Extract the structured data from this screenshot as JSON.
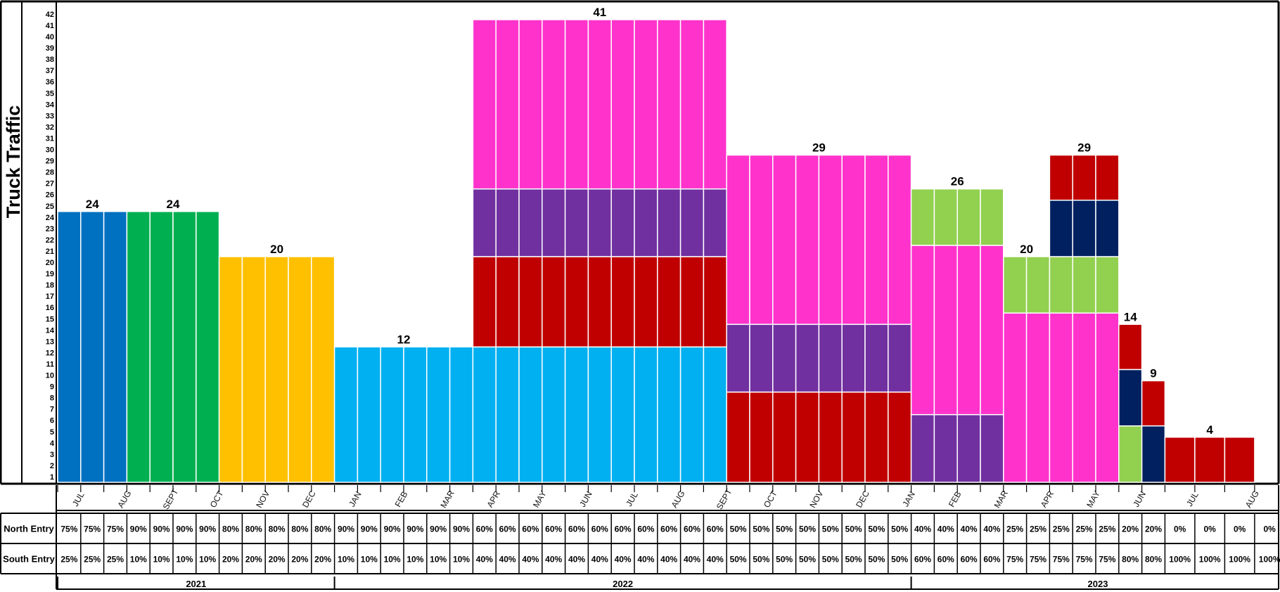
{
  "chart_data": {
    "type": "bar",
    "stacked": true,
    "ylabel": "Truck  Traffic",
    "ylim": [
      0,
      42
    ],
    "yticks": [
      1,
      2,
      3,
      4,
      5,
      6,
      7,
      8,
      9,
      10,
      11,
      12,
      13,
      14,
      15,
      16,
      17,
      18,
      19,
      20,
      21,
      22,
      23,
      24,
      25,
      26,
      27,
      28,
      29,
      30,
      31,
      32,
      33,
      34,
      35,
      36,
      37,
      38,
      39,
      40,
      41,
      42
    ],
    "colors": {
      "dark_blue": "#0070c0",
      "green": "#00b050",
      "orange": "#ffc000",
      "light_blue": "#00b0f0",
      "pink": "#ff33cc",
      "purple": "#7030a0",
      "red": "#c00000",
      "lime": "#92d050",
      "navy": "#002060"
    },
    "bars": [
      {
        "segments": [
          {
            "value": 24,
            "color": "dark_blue"
          }
        ]
      },
      {
        "segments": [
          {
            "value": 24,
            "color": "dark_blue"
          }
        ]
      },
      {
        "segments": [
          {
            "value": 24,
            "color": "dark_blue"
          }
        ]
      },
      {
        "segments": [
          {
            "value": 24,
            "color": "green"
          }
        ]
      },
      {
        "segments": [
          {
            "value": 24,
            "color": "green"
          }
        ]
      },
      {
        "segments": [
          {
            "value": 24,
            "color": "green"
          }
        ]
      },
      {
        "segments": [
          {
            "value": 24,
            "color": "green"
          }
        ]
      },
      {
        "segments": [
          {
            "value": 20,
            "color": "orange"
          }
        ]
      },
      {
        "segments": [
          {
            "value": 20,
            "color": "orange"
          }
        ]
      },
      {
        "segments": [
          {
            "value": 20,
            "color": "orange"
          }
        ]
      },
      {
        "segments": [
          {
            "value": 20,
            "color": "orange"
          }
        ]
      },
      {
        "segments": [
          {
            "value": 20,
            "color": "orange"
          }
        ]
      },
      {
        "segments": [
          {
            "value": 12,
            "color": "light_blue"
          }
        ]
      },
      {
        "segments": [
          {
            "value": 12,
            "color": "light_blue"
          }
        ]
      },
      {
        "segments": [
          {
            "value": 12,
            "color": "light_blue"
          }
        ]
      },
      {
        "segments": [
          {
            "value": 12,
            "color": "light_blue"
          }
        ]
      },
      {
        "segments": [
          {
            "value": 12,
            "color": "light_blue"
          }
        ]
      },
      {
        "segments": [
          {
            "value": 12,
            "color": "light_blue"
          }
        ]
      },
      {
        "segments": [
          {
            "value": 12,
            "color": "light_blue"
          },
          {
            "value": 8,
            "color": "red"
          },
          {
            "value": 6,
            "color": "purple"
          },
          {
            "value": 15,
            "color": "pink"
          }
        ]
      },
      {
        "segments": [
          {
            "value": 12,
            "color": "light_blue"
          },
          {
            "value": 8,
            "color": "red"
          },
          {
            "value": 6,
            "color": "purple"
          },
          {
            "value": 15,
            "color": "pink"
          }
        ]
      },
      {
        "segments": [
          {
            "value": 12,
            "color": "light_blue"
          },
          {
            "value": 8,
            "color": "red"
          },
          {
            "value": 6,
            "color": "purple"
          },
          {
            "value": 15,
            "color": "pink"
          }
        ]
      },
      {
        "segments": [
          {
            "value": 12,
            "color": "light_blue"
          },
          {
            "value": 8,
            "color": "red"
          },
          {
            "value": 6,
            "color": "purple"
          },
          {
            "value": 15,
            "color": "pink"
          }
        ]
      },
      {
        "segments": [
          {
            "value": 12,
            "color": "light_blue"
          },
          {
            "value": 8,
            "color": "red"
          },
          {
            "value": 6,
            "color": "purple"
          },
          {
            "value": 15,
            "color": "pink"
          }
        ]
      },
      {
        "segments": [
          {
            "value": 12,
            "color": "light_blue"
          },
          {
            "value": 8,
            "color": "red"
          },
          {
            "value": 6,
            "color": "purple"
          },
          {
            "value": 15,
            "color": "pink"
          }
        ]
      },
      {
        "segments": [
          {
            "value": 12,
            "color": "light_blue"
          },
          {
            "value": 8,
            "color": "red"
          },
          {
            "value": 6,
            "color": "purple"
          },
          {
            "value": 15,
            "color": "pink"
          }
        ]
      },
      {
        "segments": [
          {
            "value": 12,
            "color": "light_blue"
          },
          {
            "value": 8,
            "color": "red"
          },
          {
            "value": 6,
            "color": "purple"
          },
          {
            "value": 15,
            "color": "pink"
          }
        ]
      },
      {
        "segments": [
          {
            "value": 12,
            "color": "light_blue"
          },
          {
            "value": 8,
            "color": "red"
          },
          {
            "value": 6,
            "color": "purple"
          },
          {
            "value": 15,
            "color": "pink"
          }
        ]
      },
      {
        "segments": [
          {
            "value": 12,
            "color": "light_blue"
          },
          {
            "value": 8,
            "color": "red"
          },
          {
            "value": 6,
            "color": "purple"
          },
          {
            "value": 15,
            "color": "pink"
          }
        ]
      },
      {
        "segments": [
          {
            "value": 12,
            "color": "light_blue"
          },
          {
            "value": 8,
            "color": "red"
          },
          {
            "value": 6,
            "color": "purple"
          },
          {
            "value": 15,
            "color": "pink"
          }
        ]
      },
      {
        "segments": [
          {
            "value": 8,
            "color": "red"
          },
          {
            "value": 6,
            "color": "purple"
          },
          {
            "value": 15,
            "color": "pink"
          }
        ]
      },
      {
        "segments": [
          {
            "value": 8,
            "color": "red"
          },
          {
            "value": 6,
            "color": "purple"
          },
          {
            "value": 15,
            "color": "pink"
          }
        ]
      },
      {
        "segments": [
          {
            "value": 8,
            "color": "red"
          },
          {
            "value": 6,
            "color": "purple"
          },
          {
            "value": 15,
            "color": "pink"
          }
        ]
      },
      {
        "segments": [
          {
            "value": 8,
            "color": "red"
          },
          {
            "value": 6,
            "color": "purple"
          },
          {
            "value": 15,
            "color": "pink"
          }
        ]
      },
      {
        "segments": [
          {
            "value": 8,
            "color": "red"
          },
          {
            "value": 6,
            "color": "purple"
          },
          {
            "value": 15,
            "color": "pink"
          }
        ]
      },
      {
        "segments": [
          {
            "value": 8,
            "color": "red"
          },
          {
            "value": 6,
            "color": "purple"
          },
          {
            "value": 15,
            "color": "pink"
          }
        ]
      },
      {
        "segments": [
          {
            "value": 8,
            "color": "red"
          },
          {
            "value": 6,
            "color": "purple"
          },
          {
            "value": 15,
            "color": "pink"
          }
        ]
      },
      {
        "segments": [
          {
            "value": 8,
            "color": "red"
          },
          {
            "value": 6,
            "color": "purple"
          },
          {
            "value": 15,
            "color": "pink"
          }
        ]
      },
      {
        "segments": [
          {
            "value": 6,
            "color": "purple"
          },
          {
            "value": 15,
            "color": "pink"
          },
          {
            "value": 5,
            "color": "lime"
          }
        ]
      },
      {
        "segments": [
          {
            "value": 6,
            "color": "purple"
          },
          {
            "value": 15,
            "color": "pink"
          },
          {
            "value": 5,
            "color": "lime"
          }
        ]
      },
      {
        "segments": [
          {
            "value": 6,
            "color": "purple"
          },
          {
            "value": 15,
            "color": "pink"
          },
          {
            "value": 5,
            "color": "lime"
          }
        ]
      },
      {
        "segments": [
          {
            "value": 6,
            "color": "purple"
          },
          {
            "value": 15,
            "color": "pink"
          },
          {
            "value": 5,
            "color": "lime"
          }
        ]
      },
      {
        "segments": [
          {
            "value": 15,
            "color": "pink"
          },
          {
            "value": 5,
            "color": "lime"
          }
        ]
      },
      {
        "segments": [
          {
            "value": 15,
            "color": "pink"
          },
          {
            "value": 5,
            "color": "lime"
          }
        ]
      },
      {
        "segments": [
          {
            "value": 15,
            "color": "pink"
          },
          {
            "value": 5,
            "color": "lime"
          },
          {
            "value": 5,
            "color": "navy"
          },
          {
            "value": 4,
            "color": "red"
          }
        ]
      },
      {
        "segments": [
          {
            "value": 15,
            "color": "pink"
          },
          {
            "value": 5,
            "color": "lime"
          },
          {
            "value": 5,
            "color": "navy"
          },
          {
            "value": 4,
            "color": "red"
          }
        ]
      },
      {
        "segments": [
          {
            "value": 15,
            "color": "pink"
          },
          {
            "value": 5,
            "color": "lime"
          },
          {
            "value": 5,
            "color": "navy"
          },
          {
            "value": 4,
            "color": "red"
          }
        ]
      },
      {
        "segments": [
          {
            "value": 5,
            "color": "lime"
          },
          {
            "value": 5,
            "color": "navy"
          },
          {
            "value": 4,
            "color": "red"
          }
        ]
      },
      {
        "segments": [
          {
            "value": 5,
            "color": "navy"
          },
          {
            "value": 4,
            "color": "red"
          }
        ]
      },
      {
        "segments": [
          {
            "value": 4,
            "color": "red"
          }
        ]
      },
      {
        "segments": [
          {
            "value": 4,
            "color": "red"
          }
        ]
      },
      {
        "segments": [
          {
            "value": 4,
            "color": "red"
          }
        ]
      }
    ],
    "wide_bar_start": 51,
    "totals": [
      {
        "label": "24",
        "from": 0,
        "to": 2
      },
      {
        "label": "24",
        "from": 3,
        "to": 6
      },
      {
        "label": "20",
        "from": 7,
        "to": 11
      },
      {
        "label": "12",
        "from": 12,
        "to": 17
      },
      {
        "label": "41",
        "from": 18,
        "to": 28
      },
      {
        "label": "29",
        "from": 29,
        "to": 36
      },
      {
        "label": "26",
        "from": 37,
        "to": 40
      },
      {
        "label": "20",
        "from": 41,
        "to": 42
      },
      {
        "label": "29",
        "from": 43,
        "to": 45
      },
      {
        "label": "14",
        "from": 46,
        "to": 46
      },
      {
        "label": "9",
        "from": 47,
        "to": 47
      },
      {
        "label": "4",
        "from": 48,
        "to": 50
      }
    ],
    "month_labels": [
      {
        "label": "JUL",
        "at": 1
      },
      {
        "label": "AUG",
        "at": 3
      },
      {
        "label": "SEPT",
        "at": 5
      },
      {
        "label": "OCT",
        "at": 7
      },
      {
        "label": "NOV",
        "at": 9
      },
      {
        "label": "DEC",
        "at": 11
      },
      {
        "label": "JAN",
        "at": 13
      },
      {
        "label": "FEB",
        "at": 15
      },
      {
        "label": "MAR",
        "at": 17
      },
      {
        "label": "APR",
        "at": 19
      },
      {
        "label": "MAY",
        "at": 21
      },
      {
        "label": "JUN",
        "at": 23
      },
      {
        "label": "JUL",
        "at": 25
      },
      {
        "label": "AUG",
        "at": 27
      },
      {
        "label": "SEPT",
        "at": 29
      },
      {
        "label": "OCT",
        "at": 31
      },
      {
        "label": "NOV",
        "at": 33
      },
      {
        "label": "DEC",
        "at": 35
      },
      {
        "label": "JAN",
        "at": 37
      },
      {
        "label": "FEB",
        "at": 39
      },
      {
        "label": "MAR",
        "at": 41
      },
      {
        "label": "APR",
        "at": 43
      },
      {
        "label": "MAY",
        "at": 45
      },
      {
        "label": "JUN",
        "at": 47
      },
      {
        "label": "JUL",
        "at": 49
      },
      {
        "label": "AUG",
        "at": 51
      }
    ],
    "table": {
      "north_label": "North Entry",
      "south_label": "South Entry",
      "north": [
        "75%",
        "75%",
        "75%",
        "90%",
        "90%",
        "90%",
        "90%",
        "80%",
        "80%",
        "80%",
        "80%",
        "80%",
        "90%",
        "90%",
        "90%",
        "90%",
        "90%",
        "90%",
        "60%",
        "60%",
        "60%",
        "60%",
        "60%",
        "60%",
        "60%",
        "60%",
        "60%",
        "60%",
        "60%",
        "50%",
        "50%",
        "50%",
        "50%",
        "50%",
        "50%",
        "50%",
        "50%",
        "40%",
        "40%",
        "40%",
        "40%",
        "25%",
        "25%",
        "25%",
        "25%",
        "25%",
        "20%",
        "20%",
        "0%",
        "0%",
        "0%",
        "0%"
      ],
      "south": [
        "25%",
        "25%",
        "25%",
        "10%",
        "10%",
        "10%",
        "10%",
        "20%",
        "20%",
        "20%",
        "20%",
        "20%",
        "10%",
        "10%",
        "10%",
        "10%",
        "10%",
        "10%",
        "40%",
        "40%",
        "40%",
        "40%",
        "40%",
        "40%",
        "40%",
        "40%",
        "40%",
        "40%",
        "40%",
        "50%",
        "50%",
        "50%",
        "50%",
        "50%",
        "50%",
        "50%",
        "50%",
        "60%",
        "60%",
        "60%",
        "60%",
        "75%",
        "75%",
        "75%",
        "75%",
        "75%",
        "80%",
        "80%",
        "100%",
        "100%",
        "100%",
        "100%"
      ]
    },
    "years": [
      {
        "label": "2021",
        "from": 0,
        "to": 11
      },
      {
        "label": "2022",
        "from": 12,
        "to": 36
      },
      {
        "label": "2023",
        "from": 37,
        "to": 51
      }
    ]
  }
}
